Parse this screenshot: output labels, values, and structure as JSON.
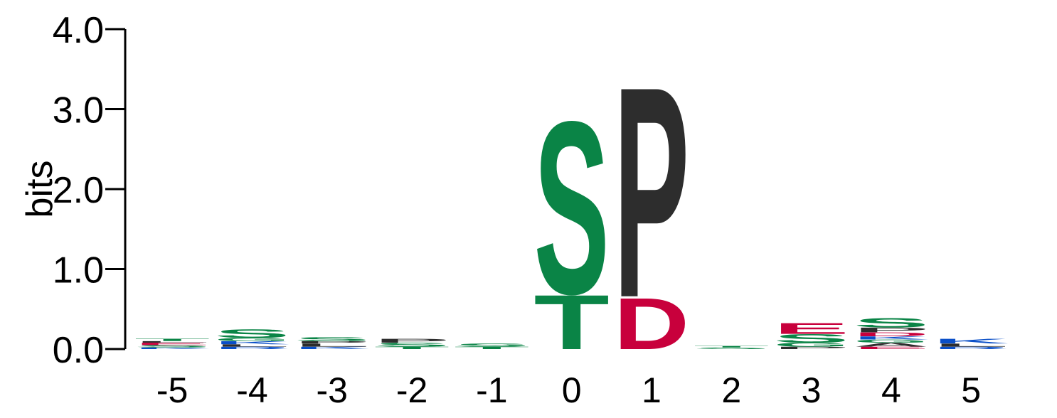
{
  "chart_data": {
    "type": "sequence-logo",
    "ylabel": "bits",
    "ylim": [
      0,
      4.0
    ],
    "yticks": [
      "0.0",
      "1.0",
      "2.0",
      "3.0",
      "4.0"
    ],
    "positions": [
      "-5",
      "-4",
      "-3",
      "-2",
      "-1",
      "0",
      "1",
      "2",
      "3",
      "4",
      "5"
    ],
    "colors": {
      "hydrophobic": "#2d2d2d",
      "polar": "#0a8446",
      "acidic": "#c8003c",
      "basic": "#0a4fc8",
      "neutral": "#7a2a8a"
    },
    "stacks": [
      {
        "position": "-5",
        "letters": [
          {
            "letter": "K",
            "bits": 0.02,
            "color": "#0a4fc8"
          },
          {
            "letter": "S",
            "bits": 0.03,
            "color": "#0a8446"
          },
          {
            "letter": "E",
            "bits": 0.03,
            "color": "#c8003c"
          },
          {
            "letter": "L",
            "bits": 0.02,
            "color": "#2d2d2d"
          },
          {
            "letter": "T",
            "bits": 0.03,
            "color": "#0a8446"
          }
        ]
      },
      {
        "position": "-4",
        "letters": [
          {
            "letter": "R",
            "bits": 0.03,
            "color": "#0a4fc8"
          },
          {
            "letter": "L",
            "bits": 0.03,
            "color": "#2d2d2d"
          },
          {
            "letter": "K",
            "bits": 0.04,
            "color": "#0a4fc8"
          },
          {
            "letter": "G",
            "bits": 0.04,
            "color": "#0a8446"
          },
          {
            "letter": "S",
            "bits": 0.11,
            "color": "#0a8446"
          }
        ]
      },
      {
        "position": "-3",
        "letters": [
          {
            "letter": "K",
            "bits": 0.03,
            "color": "#0a4fc8"
          },
          {
            "letter": "L",
            "bits": 0.04,
            "color": "#2d2d2d"
          },
          {
            "letter": "P",
            "bits": 0.03,
            "color": "#2d2d2d"
          },
          {
            "letter": "S",
            "bits": 0.05,
            "color": "#0a8446"
          }
        ]
      },
      {
        "position": "-2",
        "letters": [
          {
            "letter": "T",
            "bits": 0.03,
            "color": "#0a8446"
          },
          {
            "letter": "S",
            "bits": 0.05,
            "color": "#0a8446"
          },
          {
            "letter": "P",
            "bits": 0.05,
            "color": "#2d2d2d"
          }
        ]
      },
      {
        "position": "-1",
        "letters": [
          {
            "letter": "T",
            "bits": 0.03,
            "color": "#0a8446"
          },
          {
            "letter": "S",
            "bits": 0.04,
            "color": "#0a8446"
          }
        ]
      },
      {
        "position": "0",
        "letters": [
          {
            "letter": "T",
            "bits": 0.7,
            "color": "#0a8446"
          },
          {
            "letter": "S",
            "bits": 2.22,
            "color": "#0a8446"
          }
        ]
      },
      {
        "position": "1",
        "letters": [
          {
            "letter": "D",
            "bits": 0.66,
            "color": "#c8003c"
          },
          {
            "letter": "P",
            "bits": 2.71,
            "color": "#2d2d2d"
          }
        ]
      },
      {
        "position": "2",
        "letters": [
          {
            "letter": "S",
            "bits": 0.02,
            "color": "#0a8446"
          },
          {
            "letter": "T",
            "bits": 0.02,
            "color": "#0a8446"
          }
        ]
      },
      {
        "position": "3",
        "letters": [
          {
            "letter": "P",
            "bits": 0.03,
            "color": "#2d2d2d"
          },
          {
            "letter": "G",
            "bits": 0.05,
            "color": "#0a8446"
          },
          {
            "letter": "S",
            "bits": 0.11,
            "color": "#0a8446"
          },
          {
            "letter": "E",
            "bits": 0.14,
            "color": "#c8003c"
          }
        ]
      },
      {
        "position": "4",
        "letters": [
          {
            "letter": "E",
            "bits": 0.03,
            "color": "#c8003c"
          },
          {
            "letter": "A",
            "bits": 0.05,
            "color": "#2d2d2d"
          },
          {
            "letter": "G",
            "bits": 0.04,
            "color": "#0a8446"
          },
          {
            "letter": "K",
            "bits": 0.04,
            "color": "#0a4fc8"
          },
          {
            "letter": "D",
            "bits": 0.05,
            "color": "#c8003c"
          },
          {
            "letter": "P",
            "bits": 0.06,
            "color": "#2d2d2d"
          },
          {
            "letter": "S",
            "bits": 0.12,
            "color": "#0a8446"
          }
        ]
      },
      {
        "position": "5",
        "letters": [
          {
            "letter": "R",
            "bits": 0.03,
            "color": "#0a4fc8"
          },
          {
            "letter": "L",
            "bits": 0.04,
            "color": "#2d2d2d"
          },
          {
            "letter": "K",
            "bits": 0.06,
            "color": "#0a4fc8"
          }
        ]
      }
    ]
  }
}
